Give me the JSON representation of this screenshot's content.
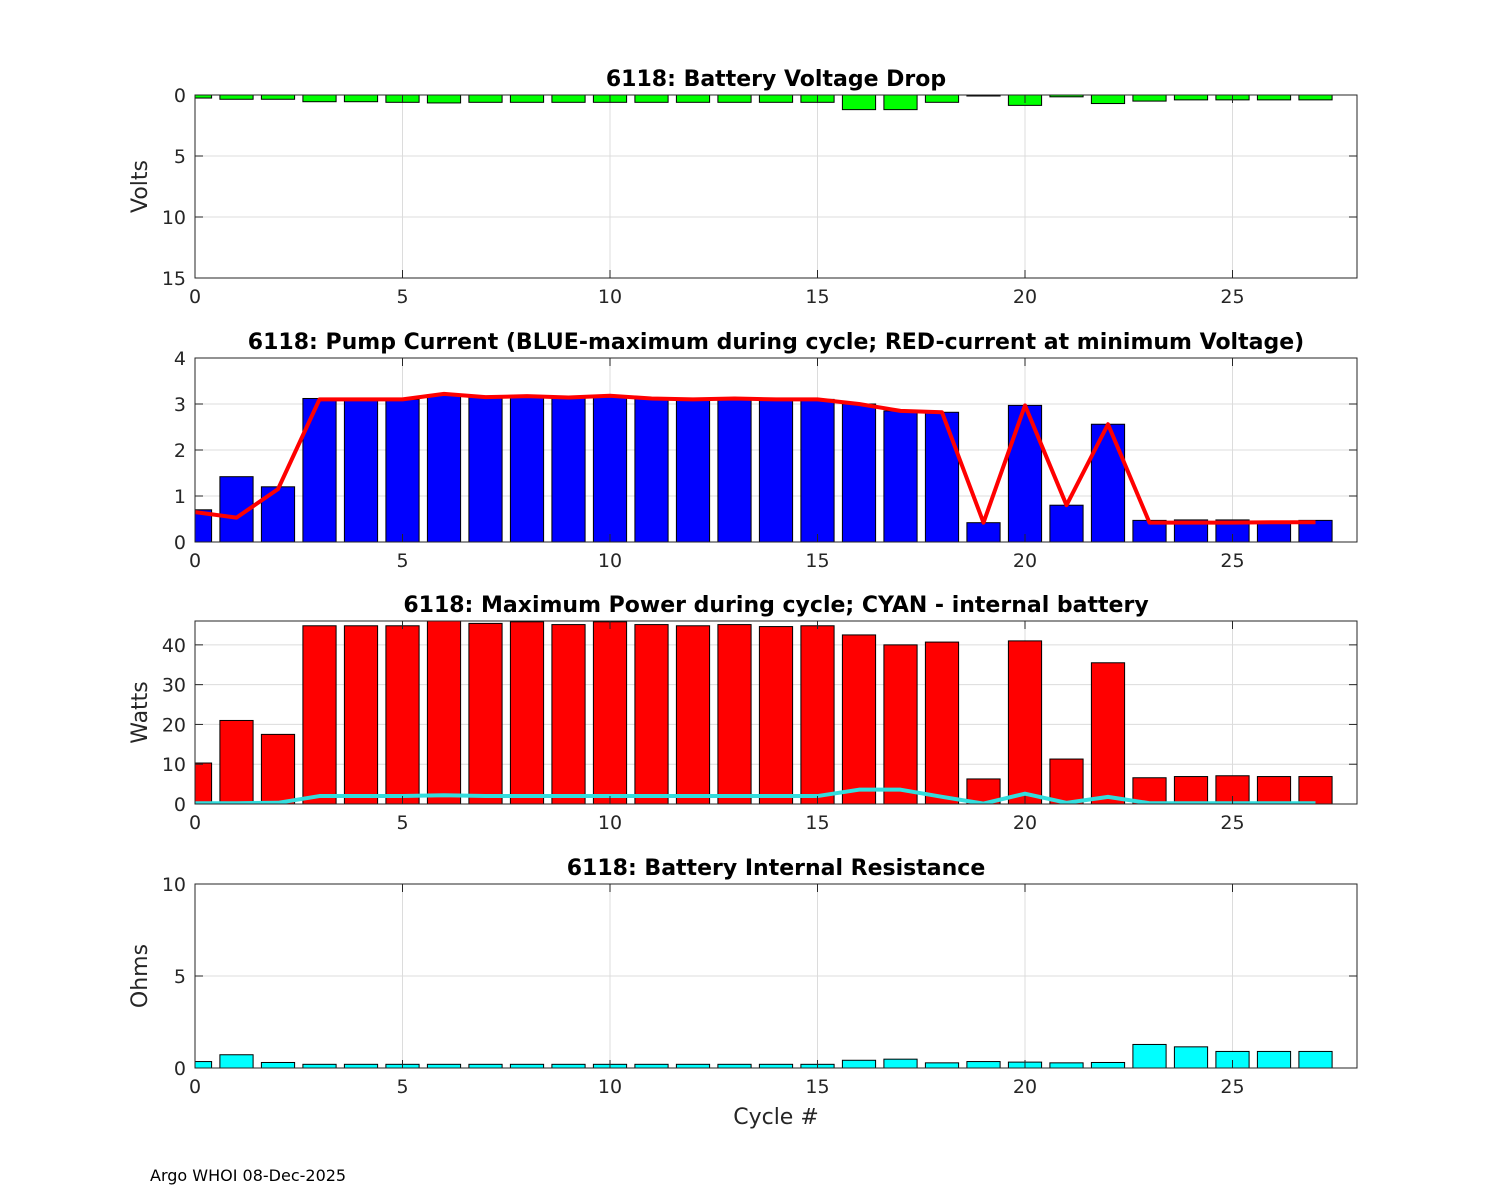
{
  "footer": "Argo WHOI 08-Dec-2025",
  "chart_data": [
    {
      "id": "voltage",
      "type": "bar",
      "title": "6118: Battery Voltage Drop",
      "xlabel": "",
      "ylabel": "Volts",
      "xlim": [
        0,
        28
      ],
      "ylim": [
        0,
        15
      ],
      "y_reversed": true,
      "xticks": [
        "0",
        "5",
        "10",
        "15",
        "20",
        "25"
      ],
      "yticks": [
        "0",
        "5",
        "10",
        "15"
      ],
      "grid": true,
      "bar_color": "#00ff00",
      "x": [
        0,
        1,
        2,
        3,
        4,
        5,
        6,
        7,
        8,
        9,
        10,
        11,
        12,
        13,
        14,
        15,
        16,
        17,
        18,
        19,
        20,
        21,
        22,
        23,
        24,
        25,
        26,
        27
      ],
      "values": [
        0.25,
        0.35,
        0.35,
        0.55,
        0.55,
        0.6,
        0.65,
        0.6,
        0.6,
        0.6,
        0.6,
        0.6,
        0.6,
        0.6,
        0.6,
        0.6,
        1.2,
        1.2,
        0.6,
        0.05,
        0.85,
        0.15,
        0.7,
        0.5,
        0.4,
        0.4,
        0.4,
        0.4
      ]
    },
    {
      "id": "current",
      "type": "bar",
      "title": "6118: Pump Current (BLUE-maximum during cycle; RED-current at minimum Voltage)",
      "xlabel": "",
      "ylabel": "",
      "xlim": [
        0,
        28
      ],
      "ylim": [
        0,
        4
      ],
      "xticks": [
        "0",
        "5",
        "10",
        "15",
        "20",
        "25"
      ],
      "yticks": [
        "0",
        "1",
        "2",
        "3",
        "4"
      ],
      "grid": true,
      "bar_color": "#0000ff",
      "x": [
        0,
        1,
        2,
        3,
        4,
        5,
        6,
        7,
        8,
        9,
        10,
        11,
        12,
        13,
        14,
        15,
        16,
        17,
        18,
        19,
        20,
        21,
        22,
        23,
        24,
        25,
        26,
        27
      ],
      "values": [
        0.7,
        1.42,
        1.2,
        3.12,
        3.1,
        3.1,
        3.2,
        3.15,
        3.17,
        3.14,
        3.18,
        3.12,
        3.1,
        3.12,
        3.1,
        3.1,
        3.0,
        2.85,
        2.82,
        0.42,
        2.97,
        0.8,
        2.56,
        0.47,
        0.48,
        0.48,
        0.45,
        0.47
      ],
      "line": {
        "name": "current at minimum Voltage",
        "color": "#ff0000",
        "values": [
          0.65,
          0.53,
          1.15,
          3.1,
          3.1,
          3.1,
          3.22,
          3.15,
          3.17,
          3.14,
          3.18,
          3.12,
          3.1,
          3.12,
          3.1,
          3.1,
          3.0,
          2.85,
          2.82,
          0.42,
          2.97,
          0.8,
          2.56,
          0.42,
          0.42,
          0.42,
          0.43,
          0.43
        ]
      }
    },
    {
      "id": "power",
      "type": "bar",
      "title": "6118: Maximum Power during cycle; CYAN - internal battery",
      "xlabel": "",
      "ylabel": "Watts",
      "xlim": [
        0,
        28
      ],
      "ylim": [
        0,
        46
      ],
      "xticks": [
        "0",
        "5",
        "10",
        "15",
        "20",
        "25"
      ],
      "yticks": [
        "0",
        "10",
        "20",
        "30",
        "40"
      ],
      "ytick_values": [
        0,
        10,
        20,
        30,
        40
      ],
      "grid": true,
      "bar_color": "#ff0000",
      "x": [
        0,
        1,
        2,
        3,
        4,
        5,
        6,
        7,
        8,
        9,
        10,
        11,
        12,
        13,
        14,
        15,
        16,
        17,
        18,
        19,
        20,
        21,
        22,
        23,
        24,
        25,
        26,
        27
      ],
      "values": [
        10.3,
        21.0,
        17.5,
        44.8,
        44.8,
        44.8,
        46.2,
        45.4,
        45.8,
        45.1,
        45.8,
        45.1,
        44.8,
        45.1,
        44.6,
        44.8,
        42.5,
        40.0,
        40.7,
        6.3,
        41.0,
        11.3,
        35.5,
        6.6,
        6.9,
        7.1,
        6.9,
        6.9
      ],
      "line": {
        "name": "internal battery",
        "color": "#33dddd",
        "values": [
          0.2,
          0.2,
          0.3,
          2.0,
          2.0,
          2.0,
          2.2,
          2.0,
          2.0,
          2.0,
          2.0,
          2.0,
          2.0,
          2.0,
          2.0,
          2.0,
          3.6,
          3.6,
          1.8,
          0.1,
          2.6,
          0.3,
          1.8,
          0.2,
          0.2,
          0.2,
          0.2,
          0.2
        ]
      }
    },
    {
      "id": "resistance",
      "type": "bar",
      "title": "6118: Battery Internal Resistance",
      "xlabel": "Cycle #",
      "ylabel": "Ohms",
      "xlim": [
        0,
        28
      ],
      "ylim": [
        0,
        10
      ],
      "xticks": [
        "0",
        "5",
        "10",
        "15",
        "20",
        "25"
      ],
      "yticks": [
        "0",
        "5",
        "10"
      ],
      "grid": true,
      "bar_color": "#00ffff",
      "x": [
        0,
        1,
        2,
        3,
        4,
        5,
        6,
        7,
        8,
        9,
        10,
        11,
        12,
        13,
        14,
        15,
        16,
        17,
        18,
        19,
        20,
        21,
        22,
        23,
        24,
        25,
        26,
        27
      ],
      "values": [
        0.35,
        0.72,
        0.3,
        0.2,
        0.2,
        0.2,
        0.2,
        0.2,
        0.2,
        0.2,
        0.2,
        0.2,
        0.2,
        0.2,
        0.2,
        0.2,
        0.42,
        0.48,
        0.28,
        0.35,
        0.32,
        0.28,
        0.3,
        1.28,
        1.15,
        0.9,
        0.9,
        0.9
      ]
    }
  ]
}
